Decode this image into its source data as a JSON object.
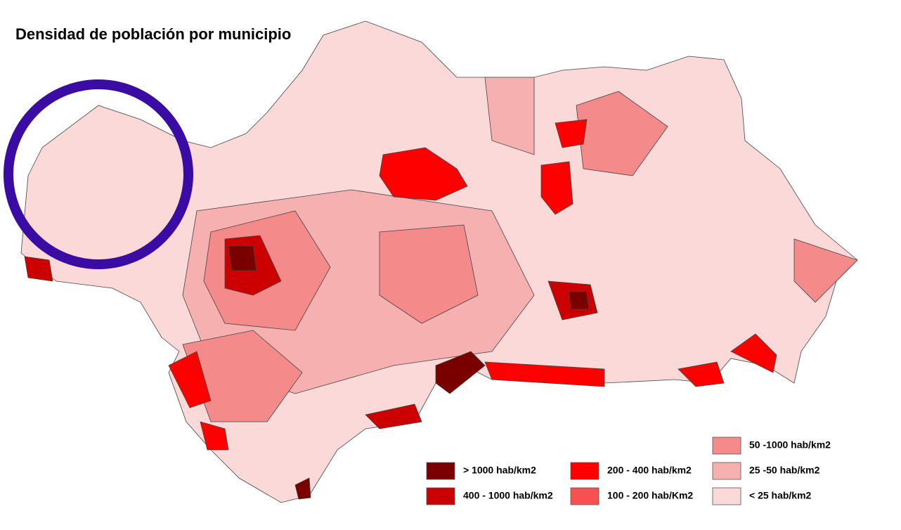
{
  "title": "Densidad de población por municipio",
  "legend": [
    {
      "label": "> 1000 hab/km2",
      "color": "#7a0000"
    },
    {
      "label": "400 - 1000 hab/km2",
      "color": "#cc0000"
    },
    {
      "label": "200 - 400 hab/km2",
      "color": "#ff0000"
    },
    {
      "label": "100 - 200 hab/Km2",
      "color": "#f75050"
    },
    {
      "label": "50 -1000 hab/km2",
      "color": "#f58a8a"
    },
    {
      "label": "25 -50 hab/km2",
      "color": "#f7b0b0"
    },
    {
      "label": "< 25 hab/km2",
      "color": "#fcd9d9"
    }
  ]
}
